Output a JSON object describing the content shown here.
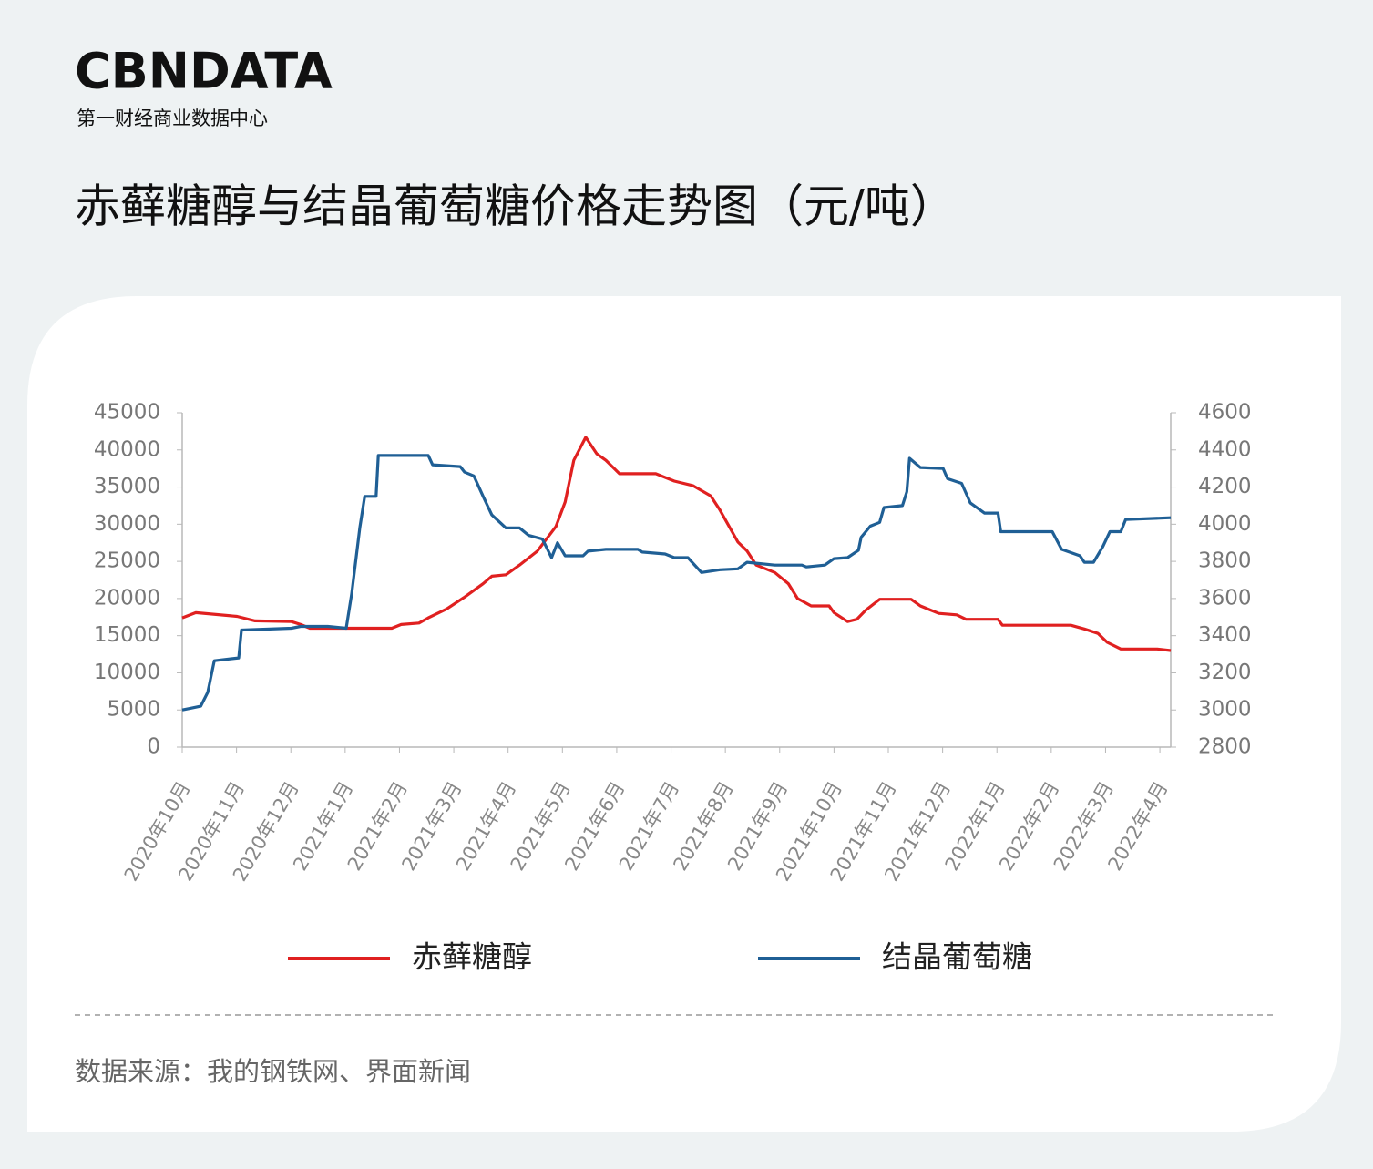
{
  "logo": "CBNDATA",
  "logo_subtitle": "第一财经商业数据中心",
  "chart_data": {
    "type": "line",
    "title": "赤藓糖醇与结晶葡萄糖价格走势图（元/吨）",
    "source": "数据来源：我的钢铁网、界面新闻",
    "xlim": [
      0,
      18.2
    ],
    "xticks": [
      {
        "value": 0,
        "label": "2020年10月"
      },
      {
        "value": 1,
        "label": "2020年11月"
      },
      {
        "value": 2,
        "label": "2020年12月"
      },
      {
        "value": 3,
        "label": "2021年1月"
      },
      {
        "value": 4,
        "label": "2021年2月"
      },
      {
        "value": 5,
        "label": "2021年3月"
      },
      {
        "value": 6,
        "label": "2021年4月"
      },
      {
        "value": 7,
        "label": "2021年5月"
      },
      {
        "value": 8,
        "label": "2021年6月"
      },
      {
        "value": 9,
        "label": "2021年7月"
      },
      {
        "value": 10,
        "label": "2021年8月"
      },
      {
        "value": 11,
        "label": "2021年9月"
      },
      {
        "value": 12,
        "label": "2021年10月"
      },
      {
        "value": 13,
        "label": "2021年11月"
      },
      {
        "value": 14,
        "label": "2021年12月"
      },
      {
        "value": 15,
        "label": "2022年1月"
      },
      {
        "value": 16,
        "label": "2022年2月"
      },
      {
        "value": 17,
        "label": "2022年3月"
      },
      {
        "value": 18,
        "label": "2022年4月"
      }
    ],
    "ylim": [
      0,
      45000
    ],
    "yticks": [
      0,
      5000,
      10000,
      15000,
      20000,
      25000,
      30000,
      35000,
      40000,
      45000
    ],
    "y2lim": [
      2800,
      4600
    ],
    "y2ticks": [
      2800,
      3000,
      3200,
      3400,
      3600,
      3800,
      4000,
      4200,
      4400,
      4600
    ],
    "series": [
      {
        "name": "赤藓糖醇",
        "color": "#e02020",
        "x": [
          0,
          0.25,
          1.01,
          1.34,
          2.01,
          2.18,
          2.35,
          3.86,
          4.03,
          4.36,
          4.53,
          4.87,
          5.2,
          5.54,
          5.7,
          5.96,
          6.21,
          6.54,
          6.88,
          7.05,
          7.21,
          7.43,
          7.63,
          7.8,
          8.05,
          8.72,
          9.06,
          9.4,
          9.73,
          9.9,
          10.23,
          10.4,
          10.57,
          10.91,
          11.16,
          11.33,
          11.58,
          11.91,
          12.0,
          12.25,
          12.42,
          12.58,
          12.84,
          13.42,
          13.59,
          13.93,
          14.26,
          14.43,
          15.02,
          15.1,
          16.36,
          16.61,
          16.86,
          17.03,
          17.28,
          17.95,
          18.2
        ],
        "values": [
          17400,
          18100,
          17600,
          17000,
          16900,
          16500,
          16000,
          16000,
          16500,
          16700,
          17400,
          18600,
          20200,
          22000,
          23000,
          23200,
          24500,
          26400,
          29700,
          33000,
          38600,
          41700,
          39500,
          38600,
          36800,
          36800,
          35800,
          35200,
          33800,
          31900,
          27600,
          26400,
          24500,
          23500,
          22000,
          20000,
          19000,
          19000,
          18100,
          16900,
          17200,
          18400,
          19900,
          19900,
          19000,
          18000,
          17800,
          17200,
          17200,
          16400,
          16400,
          15900,
          15300,
          14100,
          13200,
          13200,
          13000
        ]
      },
      {
        "name": "结晶葡萄糖",
        "color": "#1f5f95",
        "axis": "y2",
        "x": [
          0,
          0.17,
          0.34,
          0.47,
          0.59,
          1.04,
          1.09,
          2.01,
          2.18,
          2.68,
          3.02,
          3.12,
          3.27,
          3.36,
          3.57,
          3.61,
          4.53,
          4.61,
          5.12,
          5.2,
          5.37,
          5.54,
          5.7,
          5.96,
          6.21,
          6.38,
          6.63,
          6.8,
          6.91,
          7.05,
          7.38,
          7.47,
          7.8,
          8.39,
          8.47,
          8.89,
          9.06,
          9.31,
          9.56,
          9.9,
          10.23,
          10.4,
          10.91,
          11.41,
          11.49,
          11.83,
          12.0,
          12.25,
          12.45,
          12.5,
          12.67,
          12.84,
          12.92,
          13.26,
          13.34,
          13.39,
          13.59,
          14.01,
          14.09,
          14.35,
          14.51,
          14.77,
          15.02,
          15.07,
          16.02,
          16.19,
          16.53,
          16.61,
          16.78,
          16.95,
          17.08,
          17.28,
          17.37,
          18.2
        ],
        "values": [
          3000,
          3010,
          3020,
          3095,
          3265,
          3280,
          3430,
          3440,
          3450,
          3450,
          3440,
          3625,
          3980,
          4150,
          4150,
          4370,
          4370,
          4320,
          4310,
          4280,
          4260,
          4150,
          4050,
          3980,
          3980,
          3940,
          3920,
          3820,
          3900,
          3830,
          3830,
          3855,
          3865,
          3865,
          3850,
          3840,
          3820,
          3820,
          3740,
          3755,
          3760,
          3795,
          3780,
          3780,
          3770,
          3780,
          3815,
          3820,
          3860,
          3930,
          3990,
          4010,
          4090,
          4100,
          4175,
          4355,
          4305,
          4300,
          4245,
          4220,
          4115,
          4060,
          4060,
          3960,
          3960,
          3865,
          3830,
          3795,
          3795,
          3880,
          3960,
          3960,
          4025,
          4035
        ]
      }
    ]
  }
}
